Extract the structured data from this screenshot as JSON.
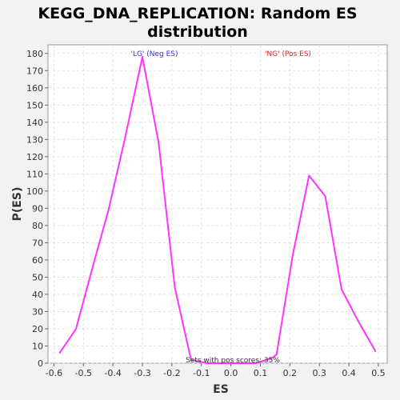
{
  "chart_data": {
    "type": "line",
    "title_line1": "KEGG_DNA_REPLICATION: Random ES",
    "title_line2": "distribution",
    "xlabel": "ES",
    "ylabel": "P(ES)",
    "xlim": [
      -0.62,
      0.53
    ],
    "ylim": [
      0,
      185
    ],
    "xticks": [
      "-0.6",
      "-0.5",
      "-0.4",
      "-0.3",
      "-0.2",
      "-0.1",
      "0.0",
      "0.1",
      "0.2",
      "0.3",
      "0.4",
      "0.5"
    ],
    "yticks": [
      "0",
      "10",
      "20",
      "30",
      "40",
      "50",
      "60",
      "70",
      "80",
      "90",
      "100",
      "110",
      "120",
      "130",
      "140",
      "150",
      "160",
      "170",
      "180"
    ],
    "grid": true,
    "series": [
      {
        "color": "#ff33ff",
        "x": [
          -0.58,
          -0.525,
          -0.47,
          -0.415,
          -0.36,
          -0.3,
          -0.245,
          -0.19,
          -0.135,
          -0.08,
          -0.025,
          0.03,
          0.085,
          0.14,
          0.155,
          0.21,
          0.265,
          0.32,
          0.375,
          0.43,
          0.49
        ],
        "y": [
          6,
          20,
          55,
          89,
          130,
          178,
          128,
          44,
          2,
          0,
          0,
          0,
          0,
          3,
          5,
          63,
          109,
          97,
          43,
          25,
          7
        ]
      }
    ],
    "annotations": {
      "neg": {
        "text": "'LG' (Neg ES)",
        "color": "#3333cc"
      },
      "pos": {
        "text": "'NG' (Pos ES)",
        "color": "#dd2222"
      },
      "footer": {
        "text": "Sets with pos scores: 35%",
        "color": "#333333"
      }
    }
  }
}
